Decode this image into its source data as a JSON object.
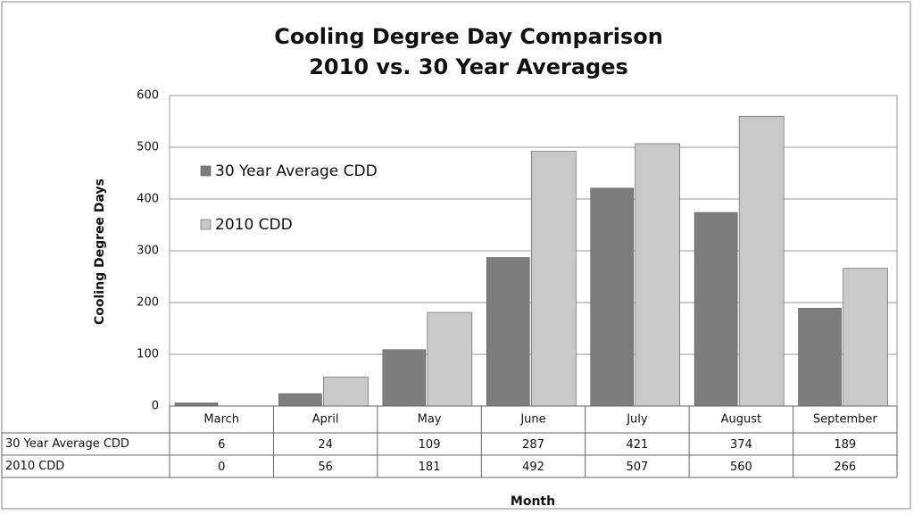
{
  "chart_data": {
    "type": "bar",
    "title": "Cooling Degree Day Comparison",
    "subtitle": "2010 vs. 30 Year Averages",
    "x_label": "Month",
    "y_label": "Cooling Degree Days",
    "categories": [
      "March",
      "April",
      "May",
      "June",
      "July",
      "August",
      "September"
    ],
    "series": [
      {
        "name": "30 Year Average CDD",
        "color": "#7d7d7d",
        "values": [
          6,
          24,
          109,
          287,
          421,
          374,
          189
        ]
      },
      {
        "name": "2010 CDD",
        "color": "#c9c9c9",
        "values": [
          0,
          56,
          181,
          492,
          507,
          560,
          266
        ]
      }
    ],
    "ylim": [
      0,
      600
    ],
    "yticks": [
      0,
      100,
      200,
      300,
      400,
      500,
      600
    ],
    "grid": true,
    "legend": "upper left",
    "data_table": true
  }
}
